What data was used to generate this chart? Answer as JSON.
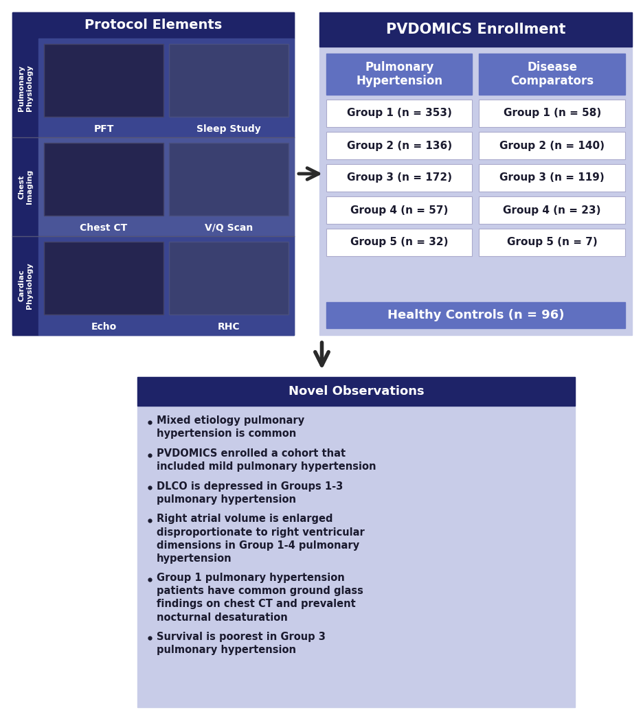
{
  "bg_color": "#ffffff",
  "dark_navy": "#1e2368",
  "medium_blue": "#6070c0",
  "light_lavender": "#c8cce8",
  "white": "#ffffff",
  "dark_text": "#1a1a2e",
  "section_bg": "#3a4590",
  "section_side": "#2a3070",
  "protocol_title": "Protocol Elements",
  "protocol_sections": [
    {
      "label": "Pulmonary\nPhysiology",
      "items": [
        "PFT",
        "Sleep Study"
      ]
    },
    {
      "label": "Chest\nImaging",
      "items": [
        "Chest CT",
        "V/Q Scan"
      ]
    },
    {
      "label": "Cardiac\nPhysiology",
      "items": [
        "Echo",
        "RHC"
      ]
    }
  ],
  "enrollment_title": "PVDOMICS Enrollment",
  "col1_header": "Pulmonary\nHypertension",
  "col2_header": "Disease\nComparators",
  "ph_groups": [
    "Group 1 (n = 353)",
    "Group 2 (n = 136)",
    "Group 3 (n = 172)",
    "Group 4 (n = 57)",
    "Group 5 (n = 32)"
  ],
  "dc_groups": [
    "Group 1 (n = 58)",
    "Group 2 (n = 140)",
    "Group 3 (n = 119)",
    "Group 4 (n = 23)",
    "Group 5 (n = 7)"
  ],
  "healthy_controls": "Healthy Controls (n = 96)",
  "novel_title": "Novel Observations",
  "novel_bullets": [
    "Mixed etiology pulmonary\nhypertension is common",
    "PVDOMICS enrolled a cohort that\nincluded mild pulmonary hypertension",
    "DLCO is depressed in Groups 1-3\npulmonary hypertension",
    "Right atrial volume is enlarged\ndisproportionate to right ventricular\ndimensions in Group 1-4 pulmonary\nhypertension",
    "Group 1 pulmonary hypertension\npatients have common ground glass\nfindings on chest CT and prevalent\nnocturnal desaturation",
    "Survival is poorest in Group 3\npulmonary hypertension"
  ]
}
